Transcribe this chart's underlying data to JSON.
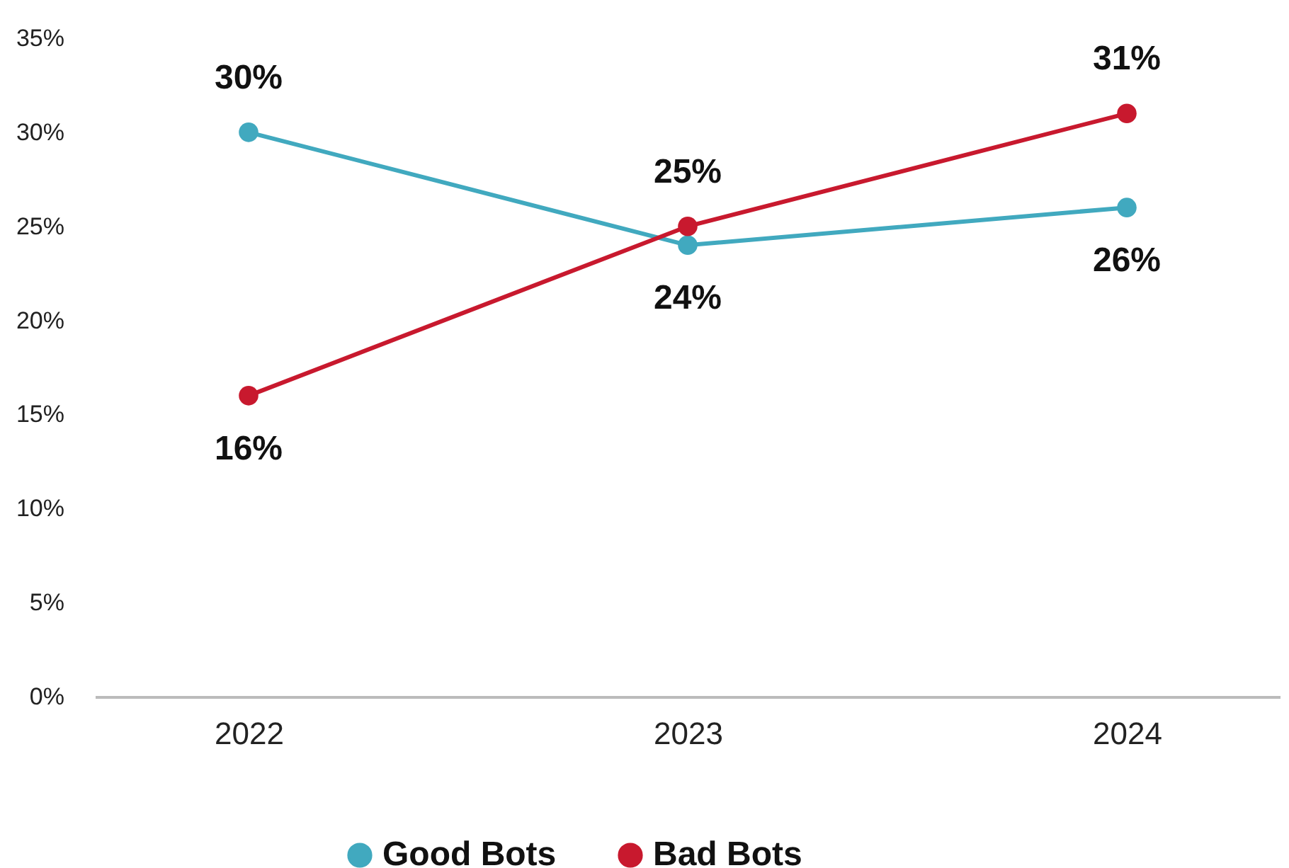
{
  "chart_data": {
    "type": "line",
    "categories": [
      "2022",
      "2023",
      "2024"
    ],
    "series": [
      {
        "name": "Good Bots",
        "color": "#41a9bf",
        "values": [
          30,
          24,
          26
        ],
        "value_labels": [
          "30%",
          "24%",
          "26%"
        ]
      },
      {
        "name": "Bad Bots",
        "color": "#c8192e",
        "values": [
          16,
          25,
          31
        ],
        "value_labels": [
          "16%",
          "25%",
          "31%"
        ]
      }
    ],
    "ylim": [
      0,
      35
    ],
    "yticks": [
      {
        "value": 0,
        "label": "0%"
      },
      {
        "value": 5,
        "label": "5%"
      },
      {
        "value": 10,
        "label": "10%"
      },
      {
        "value": 15,
        "label": "15%"
      },
      {
        "value": 20,
        "label": "20%"
      },
      {
        "value": 25,
        "label": "25%"
      },
      {
        "value": 30,
        "label": "30%"
      },
      {
        "value": 35,
        "label": "35%"
      }
    ],
    "grid": false,
    "legend": "bottom",
    "marker": "circle",
    "line_style": "solid"
  }
}
